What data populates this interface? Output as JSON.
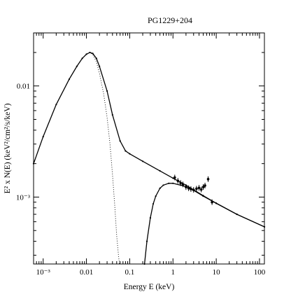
{
  "chart_data": {
    "type": "scatter",
    "title": "PG1229+204",
    "xlabel": "Energy E (keV)",
    "ylabel": "E² x N(E) (keV²/cm²/s/keV)",
    "xscale": "log",
    "yscale": "log",
    "xlim": [
      0.0006,
      130
    ],
    "ylim": [
      0.00025,
      0.03
    ],
    "x_ticks": [
      {
        "value": 0.001,
        "label": "10⁻³"
      },
      {
        "value": 0.01,
        "label": "0.01"
      },
      {
        "value": 0.1,
        "label": "0.1"
      },
      {
        "value": 1,
        "label": "1"
      },
      {
        "value": 10,
        "label": "10"
      },
      {
        "value": 100,
        "label": "100"
      }
    ],
    "y_ticks": [
      {
        "value": 0.001,
        "label": "10⁻³"
      },
      {
        "value": 0.01,
        "label": "0.01"
      }
    ],
    "grid": false,
    "series": [
      {
        "values": [
          [
            0.0006,
            0.002
          ],
          [
            0.001,
            0.0035
          ],
          [
            0.002,
            0.0068
          ],
          [
            0.004,
            0.0115
          ],
          [
            0.006,
            0.015
          ],
          [
            0.008,
            0.0177
          ],
          [
            0.01,
            0.0193
          ],
          [
            0.012,
            0.02
          ],
          [
            0.014,
            0.0196
          ],
          [
            0.017,
            0.0177
          ],
          [
            0.02,
            0.015
          ],
          [
            0.03,
            0.009
          ],
          [
            0.04,
            0.0055
          ],
          [
            0.06,
            0.0032
          ],
          [
            0.08,
            0.0026
          ],
          [
            0.1,
            0.00245
          ],
          [
            0.2,
            0.0021
          ],
          [
            0.5,
            0.00172
          ],
          [
            1.0,
            0.00148
          ],
          [
            2.0,
            0.00128
          ],
          [
            5.0,
            0.00103
          ],
          [
            10.0,
            0.00088
          ],
          [
            30.0,
            0.0007
          ],
          [
            130.0,
            0.00054
          ]
        ]
      },
      {
        "values": [
          [
            0.0006,
            0.002
          ],
          [
            0.001,
            0.0035
          ],
          [
            0.002,
            0.0068
          ],
          [
            0.004,
            0.0115
          ],
          [
            0.006,
            0.015
          ],
          [
            0.008,
            0.0177
          ],
          [
            0.01,
            0.0193
          ],
          [
            0.012,
            0.02
          ],
          [
            0.014,
            0.0192
          ],
          [
            0.017,
            0.0165
          ],
          [
            0.02,
            0.013
          ],
          [
            0.025,
            0.0085
          ],
          [
            0.03,
            0.0052
          ],
          [
            0.035,
            0.003
          ],
          [
            0.04,
            0.0016
          ],
          [
            0.045,
            0.00085
          ],
          [
            0.05,
            0.00045
          ],
          [
            0.055,
            0.0003
          ],
          [
            0.058,
            0.00025
          ]
        ]
      },
      {
        "values": [
          [
            0.22,
            0.00025
          ],
          [
            0.25,
            0.0004
          ],
          [
            0.3,
            0.00065
          ],
          [
            0.35,
            0.00087
          ],
          [
            0.4,
            0.00102
          ],
          [
            0.5,
            0.0012
          ],
          [
            0.6,
            0.00128
          ],
          [
            0.8,
            0.00133
          ],
          [
            1.0,
            0.00133
          ],
          [
            1.5,
            0.00128
          ],
          [
            2.0,
            0.00124
          ],
          [
            3.0,
            0.00115
          ],
          [
            5.0,
            0.00102
          ],
          [
            10.0,
            0.00088
          ],
          [
            30.0,
            0.0007
          ],
          [
            130.0,
            0.00054
          ]
        ]
      },
      {
        "values": [
          [
            1.1,
            0.0015
          ],
          [
            1.3,
            0.0014
          ],
          [
            1.5,
            0.00134
          ],
          [
            1.7,
            0.0013
          ],
          [
            2.0,
            0.00123
          ],
          [
            2.3,
            0.0012
          ],
          [
            2.6,
            0.00118
          ],
          [
            3.0,
            0.00116
          ],
          [
            3.5,
            0.00119
          ],
          [
            4.0,
            0.00121
          ],
          [
            4.5,
            0.00117
          ],
          [
            5.0,
            0.00123
          ],
          [
            5.5,
            0.00127
          ],
          [
            6.5,
            0.00145
          ],
          [
            8.0,
            0.0009
          ]
        ]
      }
    ]
  }
}
